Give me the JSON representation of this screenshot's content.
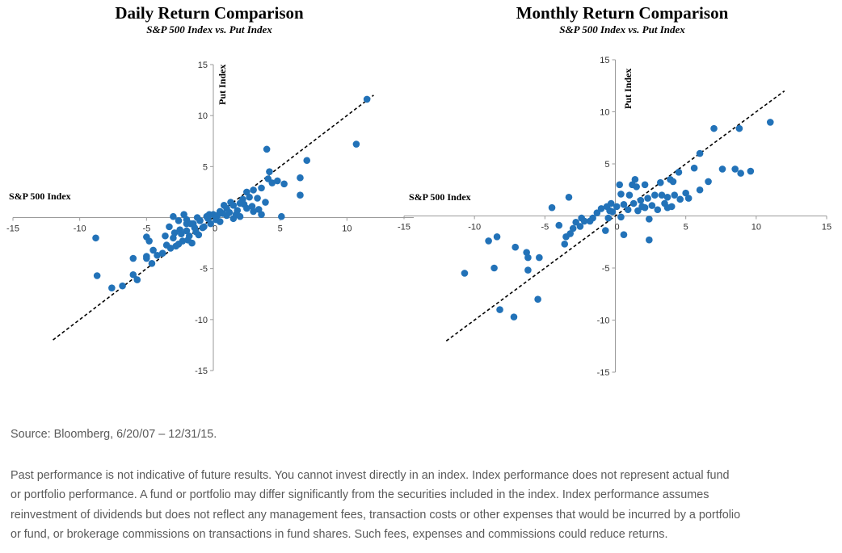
{
  "chart_data": [
    {
      "type": "scatter",
      "title": "Daily Return Comparison",
      "subtitle": "S&P 500 Index vs. Put Index",
      "xlabel": "S&P 500 Index",
      "ylabel": "Put Index",
      "xlim": [
        -15,
        15
      ],
      "ylim": [
        -15,
        15
      ],
      "xticks": [
        -15,
        -10,
        -5,
        0,
        5,
        10
      ],
      "yticks": [
        15,
        10,
        5,
        -5,
        -10,
        -15
      ],
      "reference_line": {
        "from": [
          -12,
          -12
        ],
        "to": [
          12,
          12
        ],
        "style": "dashed"
      },
      "color": "#2272B8",
      "points": [
        [
          11.5,
          11.6
        ],
        [
          10.7,
          7.2
        ],
        [
          4.0,
          6.7
        ],
        [
          7.0,
          5.6
        ],
        [
          4.2,
          4.5
        ],
        [
          6.5,
          3.9
        ],
        [
          4.8,
          3.6
        ],
        [
          5.3,
          3.3
        ],
        [
          4.1,
          3.8
        ],
        [
          3.6,
          2.9
        ],
        [
          3.0,
          2.7
        ],
        [
          6.5,
          2.2
        ],
        [
          2.5,
          2.5
        ],
        [
          2.2,
          1.8
        ],
        [
          3.9,
          1.5
        ],
        [
          5.1,
          0.1
        ],
        [
          3.6,
          0.3
        ],
        [
          2.0,
          1.4
        ],
        [
          1.5,
          1.2
        ],
        [
          1.0,
          0.9
        ],
        [
          0.5,
          0.6
        ],
        [
          0.0,
          0.3
        ],
        [
          -0.5,
          0.1
        ],
        [
          -1.0,
          -0.3
        ],
        [
          -1.5,
          -0.6
        ],
        [
          -2.0,
          -0.6
        ],
        [
          -2.5,
          -1.2
        ],
        [
          -3.0,
          -2.0
        ],
        [
          -3.5,
          -2.7
        ],
        [
          -4.5,
          -3.2
        ],
        [
          -5.0,
          -3.8
        ],
        [
          -4.8,
          -2.3
        ],
        [
          -5.0,
          -1.9
        ],
        [
          -6.0,
          -4.0
        ],
        [
          -5.0,
          -4.0
        ],
        [
          -4.6,
          -4.5
        ],
        [
          -6.0,
          -5.6
        ],
        [
          -5.7,
          -6.1
        ],
        [
          -6.8,
          -6.7
        ],
        [
          -7.6,
          -6.9
        ],
        [
          -8.7,
          -5.7
        ],
        [
          -8.8,
          -2.0
        ],
        [
          -3.0,
          0.1
        ],
        [
          -2.0,
          -0.2
        ],
        [
          -1.0,
          -0.3
        ],
        [
          0.5,
          -0.4
        ],
        [
          1.0,
          0.2
        ],
        [
          1.8,
          0.7
        ],
        [
          2.5,
          0.9
        ],
        [
          3.0,
          0.6
        ],
        [
          -0.2,
          -0.6
        ],
        [
          -0.8,
          -1.0
        ],
        [
          -1.3,
          -1.4
        ],
        [
          -1.8,
          -1.8
        ],
        [
          -2.3,
          -2.3
        ],
        [
          -2.8,
          -2.8
        ],
        [
          0.8,
          1.2
        ],
        [
          1.3,
          1.5
        ],
        [
          1.7,
          0.3
        ],
        [
          2.3,
          1.3
        ],
        [
          2.7,
          2.0
        ],
        [
          0.3,
          0.2
        ],
        [
          -0.3,
          0.3
        ],
        [
          -1.2,
          0.0
        ],
        [
          -2.2,
          0.3
        ],
        [
          -2.6,
          -0.3
        ],
        [
          -1.7,
          -0.6
        ],
        [
          -0.7,
          -0.9
        ],
        [
          0.2,
          -0.2
        ],
        [
          1.2,
          0.5
        ],
        [
          2.9,
          1.1
        ],
        [
          3.3,
          1.9
        ],
        [
          -2.4,
          -1.6
        ],
        [
          -2.0,
          -1.3
        ],
        [
          -1.4,
          -1.0
        ],
        [
          -3.3,
          -0.9
        ],
        [
          -3.6,
          -1.8
        ],
        [
          -2.9,
          -1.5
        ],
        [
          -0.4,
          -0.1
        ],
        [
          0.7,
          0.4
        ],
        [
          -1.1,
          -1.7
        ],
        [
          -1.9,
          -2.2
        ],
        [
          2.0,
          0.1
        ],
        [
          1.5,
          -0.1
        ],
        [
          -3.8,
          -3.5
        ],
        [
          -3.2,
          -3.0
        ],
        [
          -4.2,
          -3.7
        ],
        [
          -1.6,
          -2.5
        ],
        [
          -2.6,
          -2.6
        ],
        [
          3.4,
          0.8
        ],
        [
          4.4,
          3.4
        ]
      ]
    },
    {
      "type": "scatter",
      "title": "Monthly Return Comparison",
      "subtitle": "S&P 500 Index vs. Put Index",
      "xlabel": "S&P 500 Index",
      "ylabel": "Put Index",
      "xlim": [
        -15,
        15
      ],
      "ylim": [
        -15,
        15
      ],
      "xticks": [
        -15,
        -10,
        -5,
        0,
        5,
        10,
        15
      ],
      "yticks": [
        15,
        10,
        5,
        -5,
        -10,
        -15
      ],
      "reference_line": {
        "from": [
          -12,
          -12
        ],
        "to": [
          12,
          12
        ],
        "style": "dashed"
      },
      "color": "#2272B8",
      "points": [
        [
          11.0,
          9.0
        ],
        [
          8.8,
          8.4
        ],
        [
          7.0,
          8.4
        ],
        [
          6.0,
          6.0
        ],
        [
          8.5,
          4.5
        ],
        [
          9.6,
          4.3
        ],
        [
          7.6,
          4.5
        ],
        [
          8.9,
          4.1
        ],
        [
          5.6,
          4.6
        ],
        [
          6.6,
          3.3
        ],
        [
          4.5,
          4.2
        ],
        [
          3.9,
          3.5
        ],
        [
          4.1,
          3.3
        ],
        [
          3.2,
          3.2
        ],
        [
          2.1,
          3.0
        ],
        [
          1.4,
          3.5
        ],
        [
          1.2,
          3.0
        ],
        [
          1.5,
          2.8
        ],
        [
          0.3,
          3.0
        ],
        [
          0.4,
          2.1
        ],
        [
          1.0,
          2.0
        ],
        [
          2.8,
          2.0
        ],
        [
          3.3,
          2.0
        ],
        [
          5.0,
          2.2
        ],
        [
          6.0,
          2.5
        ],
        [
          4.2,
          2.0
        ],
        [
          5.2,
          1.7
        ],
        [
          3.7,
          1.8
        ],
        [
          2.3,
          1.7
        ],
        [
          3.5,
          1.2
        ],
        [
          1.8,
          1.5
        ],
        [
          1.3,
          1.2
        ],
        [
          0.6,
          1.1
        ],
        [
          0.1,
          0.9
        ],
        [
          -0.3,
          1.2
        ],
        [
          -0.6,
          0.9
        ],
        [
          -1.0,
          0.7
        ],
        [
          -3.3,
          1.8
        ],
        [
          -4.5,
          0.8
        ],
        [
          -1.3,
          0.3
        ],
        [
          -0.5,
          -0.2
        ],
        [
          0.4,
          -0.1
        ],
        [
          -1.6,
          -0.2
        ],
        [
          -2.4,
          -0.2
        ],
        [
          -2.2,
          -0.5
        ],
        [
          -2.8,
          -0.6
        ],
        [
          -3.0,
          -1.2
        ],
        [
          -3.2,
          -1.7
        ],
        [
          -3.5,
          -2.0
        ],
        [
          -4.0,
          -0.9
        ],
        [
          -3.6,
          -2.7
        ],
        [
          -2.5,
          -1.0
        ],
        [
          -1.8,
          -0.5
        ],
        [
          -0.7,
          -1.4
        ],
        [
          0.6,
          -1.8
        ],
        [
          2.4,
          -2.3
        ],
        [
          2.4,
          -0.3
        ],
        [
          -5.4,
          -4.0
        ],
        [
          -6.3,
          -3.5
        ],
        [
          -6.2,
          -4.0
        ],
        [
          -6.2,
          -5.2
        ],
        [
          -7.1,
          -3.0
        ],
        [
          -8.4,
          -2.0
        ],
        [
          -9.0,
          -2.4
        ],
        [
          -8.6,
          -5.0
        ],
        [
          -10.7,
          -5.5
        ],
        [
          -8.2,
          -9.0
        ],
        [
          -7.2,
          -9.7
        ],
        [
          -5.5,
          -8.0
        ],
        [
          2.1,
          0.8
        ],
        [
          2.6,
          1.0
        ],
        [
          3.0,
          0.6
        ],
        [
          4.0,
          0.9
        ],
        [
          3.7,
          0.8
        ],
        [
          4.6,
          1.6
        ],
        [
          1.9,
          0.9
        ],
        [
          0.9,
          0.6
        ],
        [
          -0.2,
          0.4
        ],
        [
          -0.4,
          0.5
        ],
        [
          1.6,
          0.5
        ]
      ]
    }
  ],
  "footnotes": {
    "source": "Source: Bloomberg, 6/20/07 – 12/31/15.",
    "disclaimer_lines": [
      "Past performance is not indicative of future results. You cannot invest directly in an index. Index performance does not represent actual fund",
      "or portfolio performance. A fund or portfolio may differ significantly from the securities included in the index. Index performance assumes",
      "reinvestment of dividends but does not reflect any management fees, transaction costs or other expenses that would be incurred by a portfolio",
      "or fund, or brokerage commissions on transactions in fund shares. Such fees, expenses and commissions could reduce returns."
    ]
  }
}
